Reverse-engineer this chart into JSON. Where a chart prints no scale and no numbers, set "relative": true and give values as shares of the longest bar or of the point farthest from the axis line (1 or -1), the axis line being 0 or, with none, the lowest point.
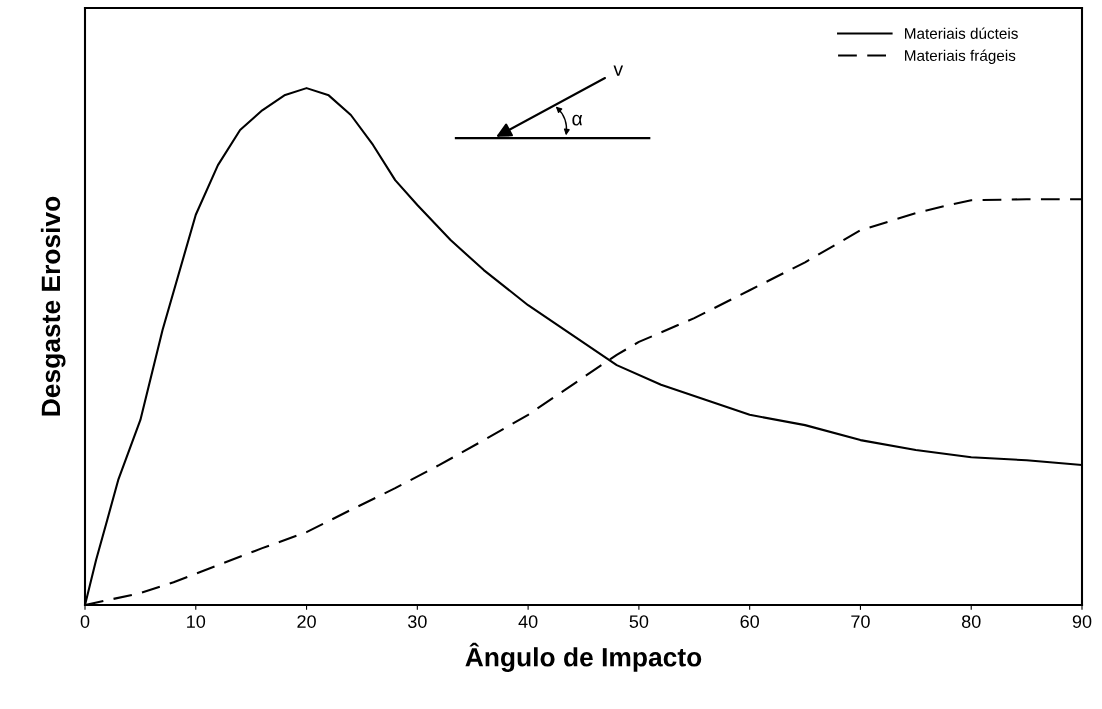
{
  "chart_data": {
    "type": "line",
    "xlabel": "Ângulo de Impacto",
    "ylabel": "Desgaste Erosivo",
    "relative": true,
    "xlim": [
      0,
      90
    ],
    "xticks": [
      0,
      10,
      20,
      30,
      40,
      50,
      60,
      70,
      80,
      90
    ],
    "legend": "top right",
    "grid": false,
    "marker": "none",
    "annotations": [
      "v",
      "α"
    ],
    "series": [
      {
        "name": "Materiais dúcteis",
        "color": "#000000",
        "line_style": "solid",
        "x": [
          0,
          1,
          2,
          3,
          5,
          7,
          10,
          12,
          14,
          16,
          18,
          20,
          22,
          24,
          26,
          28,
          30,
          33,
          36,
          40,
          44,
          48,
          52,
          56,
          60,
          65,
          70,
          75,
          80,
          85,
          90
        ],
        "values": [
          0,
          0.087,
          0.164,
          0.242,
          0.358,
          0.532,
          0.755,
          0.851,
          0.919,
          0.957,
          0.986,
          1,
          0.986,
          0.948,
          0.89,
          0.822,
          0.774,
          0.706,
          0.648,
          0.58,
          0.522,
          0.464,
          0.426,
          0.397,
          0.368,
          0.348,
          0.319,
          0.3,
          0.286,
          0.28,
          0.271
        ]
      },
      {
        "name": "Materiais frágeis",
        "color": "#000000",
        "line_style": "dashed",
        "x": [
          0,
          5,
          8,
          12,
          16,
          20,
          24,
          28,
          32,
          36,
          40,
          44,
          48,
          50,
          55,
          60,
          65,
          70,
          75,
          78,
          80,
          85,
          90
        ],
        "values": [
          0,
          0.023,
          0.044,
          0.077,
          0.11,
          0.141,
          0.184,
          0.226,
          0.271,
          0.319,
          0.368,
          0.426,
          0.484,
          0.509,
          0.555,
          0.609,
          0.663,
          0.725,
          0.758,
          0.774,
          0.783,
          0.785,
          0.785
        ]
      }
    ]
  }
}
